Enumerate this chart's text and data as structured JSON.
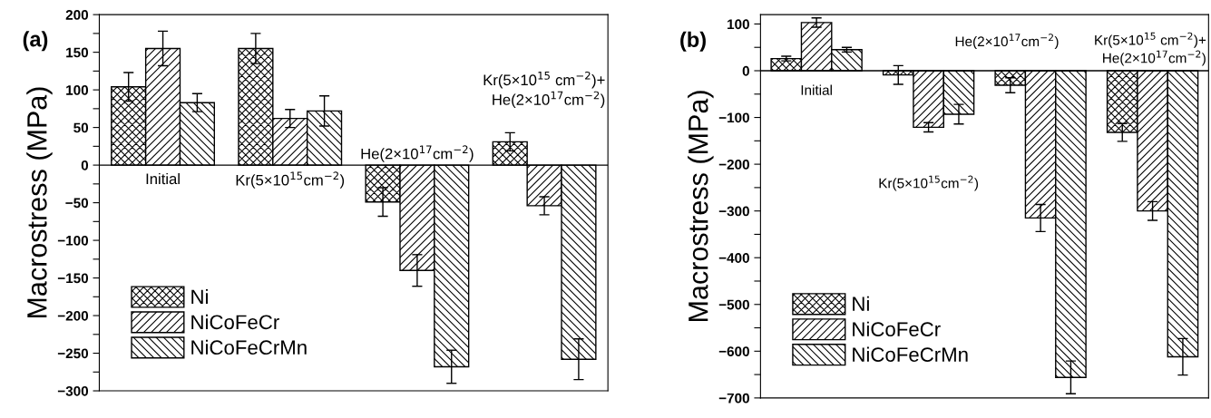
{
  "chart_data": [
    {
      "type": "bar",
      "title": "(a)",
      "ylabel": "Macrostress (MPa)",
      "categories": [
        "Initial",
        "Kr(5×10$^{15}$cm$^{−2}$)",
        "He(2×10$^{17}$cm$^{−2}$)",
        "Kr(5×10$^{15}$ cm$^{−2}$)+\nHe(2×10$^{17}$cm$^{−2}$)"
      ],
      "series": [
        {
          "name": "Ni",
          "color": "#000000",
          "values": [
            104,
            155,
            -49,
            31
          ],
          "errors": [
            19,
            20,
            19,
            12
          ]
        },
        {
          "name": "NiCoFeCr",
          "color": "#000000",
          "values": [
            155,
            62,
            -140,
            -54
          ],
          "errors": [
            23,
            12,
            21,
            12
          ]
        },
        {
          "name": "NiCoFeCrMn",
          "color": "#000000",
          "values": [
            83,
            72,
            -268,
            -258
          ],
          "errors": [
            12,
            20,
            22,
            27
          ]
        }
      ],
      "ylim": [
        -300,
        200
      ],
      "yticks": [
        {
          "value": -300,
          "label": "−300"
        },
        {
          "value": -275,
          "label": null
        },
        {
          "value": -250,
          "label": "−250"
        },
        {
          "value": -225,
          "label": null
        },
        {
          "value": -200,
          "label": "−200"
        },
        {
          "value": -175,
          "label": null
        },
        {
          "value": -150,
          "label": "−150"
        },
        {
          "value": -125,
          "label": null
        },
        {
          "value": -100,
          "label": "−100"
        },
        {
          "value": -75,
          "label": null
        },
        {
          "value": -50,
          "label": "−50"
        },
        {
          "value": -25,
          "label": null
        },
        0,
        {
          "value": 25,
          "label": null
        },
        50,
        {
          "value": 75,
          "label": null
        },
        100,
        {
          "value": 125,
          "label": null
        },
        150,
        {
          "value": 175,
          "label": null
        },
        200
      ],
      "ref_lines": [
        {
          "axis": "y",
          "value": 0,
          "color": "#000000"
        }
      ],
      "tick_labels": "y",
      "legend": "bottom left",
      "grid": false
    },
    {
      "type": "bar",
      "title": "(b)",
      "ylabel": "Macrostress (MPa)",
      "categories": [
        "Initial",
        "Kr(5×10$^{15}$cm$^{−2}$)",
        "He(2×10$^{17}$cm$^{−2}$)",
        "Kr(5×10$^{15}$ cm$^{−2}$)+\nHe(2×10$^{17}$cm$^{−2}$)"
      ],
      "series": [
        {
          "name": "Ni",
          "color": "#000000",
          "values": [
            26,
            -9,
            -31,
            -132
          ],
          "errors": [
            5,
            20,
            16,
            19
          ]
        },
        {
          "name": "NiCoFeCr",
          "color": "#000000",
          "values": [
            103,
            -121,
            -315,
            -300
          ],
          "errors": [
            10,
            10,
            29,
            20
          ]
        },
        {
          "name": "NiCoFeCrMn",
          "color": "#000000",
          "values": [
            45,
            -93,
            -656,
            -612
          ],
          "errors": [
            5,
            21,
            35,
            39
          ]
        }
      ],
      "ylim": [
        -700,
        120
      ],
      "yticks": [
        {
          "value": -700,
          "label": "−700"
        },
        {
          "value": -650,
          "label": null
        },
        {
          "value": -600,
          "label": "−600"
        },
        {
          "value": -550,
          "label": null
        },
        {
          "value": -500,
          "label": "−500"
        },
        {
          "value": -450,
          "label": null
        },
        {
          "value": -400,
          "label": "−400"
        },
        {
          "value": -350,
          "label": null
        },
        {
          "value": -300,
          "label": "−300"
        },
        {
          "value": -250,
          "label": null
        },
        {
          "value": -200,
          "label": "−200"
        },
        {
          "value": -150,
          "label": null
        },
        {
          "value": -100,
          "label": "−100"
        },
        {
          "value": -50,
          "label": null
        },
        0,
        {
          "value": 50,
          "label": null
        },
        100
      ],
      "ref_lines": [
        {
          "axis": "y",
          "value": 0,
          "color": "#000000"
        }
      ],
      "tick_labels": "y",
      "legend": "bottom left",
      "grid": false
    }
  ]
}
